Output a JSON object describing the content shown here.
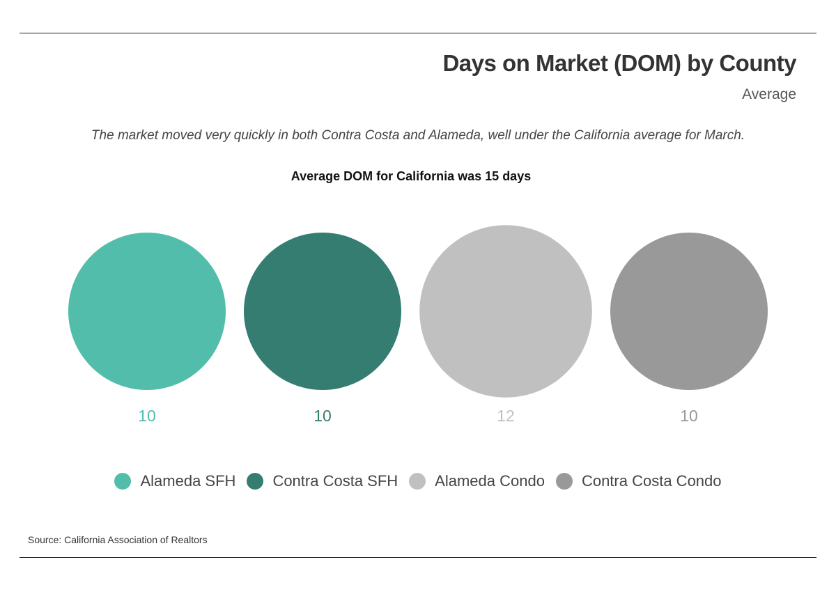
{
  "header": {
    "title": "Days on Market (DOM) by County",
    "subtitle": "Average"
  },
  "note": "The market moved very quickly in both Contra Costa and Alameda, well under the California average for March.",
  "callout": "Average DOM for California was 15 days",
  "source": "Source:  California Association of Realtors",
  "colors": {
    "alameda_sfh": "#52bdab",
    "contra_costa_sfh": "#347d70",
    "alameda_condo": "#c0c0c0",
    "contra_costa_condo": "#999999"
  },
  "chart_data": {
    "type": "bubble",
    "title": "Days on Market (DOM) by County",
    "subtitle": "Average",
    "categories": [
      "Alameda SFH",
      "Contra Costa SFH",
      "Alameda Condo",
      "Contra Costa Condo"
    ],
    "values": [
      10,
      10,
      12,
      10
    ],
    "value_labels": [
      "10",
      "10",
      "12",
      "10"
    ],
    "colors": [
      "#52bdab",
      "#347d70",
      "#c0c0c0",
      "#999999"
    ],
    "annotation": "Average DOM for California was 15 days",
    "legend_position": "bottom"
  },
  "legend": {
    "items": [
      {
        "label": "Alameda SFH",
        "color": "#52bdab"
      },
      {
        "label": "Contra Costa SFH",
        "color": "#347d70"
      },
      {
        "label": "Alameda Condo",
        "color": "#c0c0c0"
      },
      {
        "label": "Contra Costa Condo",
        "color": "#999999"
      }
    ]
  }
}
